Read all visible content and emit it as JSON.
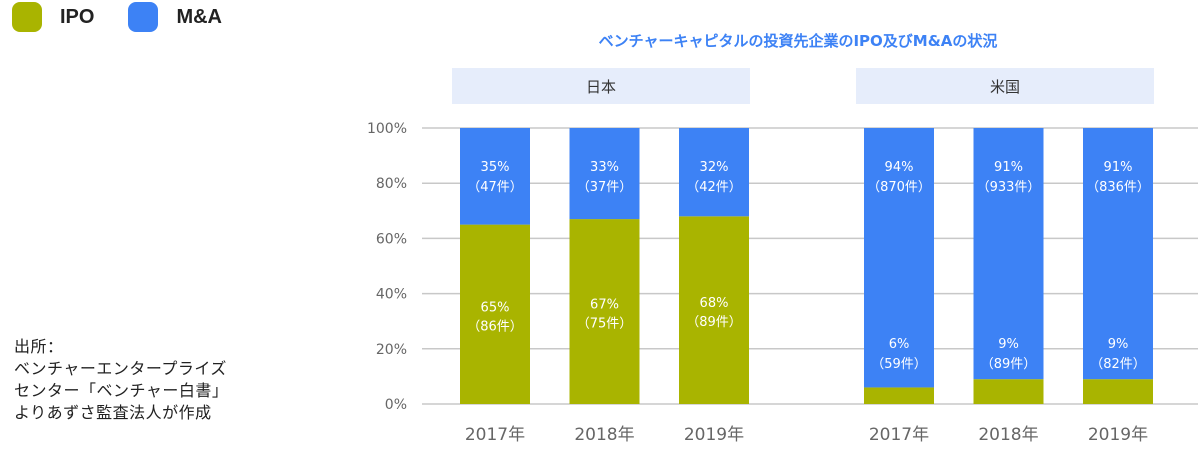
{
  "legend": {
    "items": [
      {
        "label": "IPO",
        "color": "#a9b400"
      },
      {
        "label": "M&A",
        "color": "#3d82f5"
      }
    ]
  },
  "source": {
    "lines": [
      "出所：",
      "ベンチャーエンタープライズ",
      "センター「ベンチャー白書」",
      "よりあずさ監査法人が作成"
    ]
  },
  "chart_data": {
    "type": "bar",
    "stacked": true,
    "title": "ベンチャーキャピタルの投資先企業のIPO及びM&Aの状況",
    "yticks": [
      "0%",
      "20%",
      "40%",
      "60%",
      "80%",
      "100%"
    ],
    "ylim": [
      0,
      100
    ],
    "grid": true,
    "legend_position": "top-left",
    "groups": [
      {
        "label": "日本",
        "categories": [
          "2017年",
          "2018年",
          "2019年"
        ],
        "series": [
          {
            "name": "IPO",
            "values": [
              65,
              67,
              68
            ],
            "labels": [
              "65%",
              "67%",
              "68%"
            ],
            "counts": [
              "（86件）",
              "（75件）",
              "（89件）"
            ]
          },
          {
            "name": "M&A",
            "values": [
              35,
              33,
              32
            ],
            "labels": [
              "35%",
              "33%",
              "32%"
            ],
            "counts": [
              "（47件）",
              "（37件）",
              "（42件）"
            ]
          }
        ]
      },
      {
        "label": "米国",
        "categories": [
          "2017年",
          "2018年",
          "2019年"
        ],
        "series": [
          {
            "name": "IPO",
            "values": [
              6,
              9,
              9
            ],
            "labels": [
              "6%",
              "9%",
              "9%"
            ],
            "counts": [
              "（59件）",
              "（89件）",
              "（82件）"
            ]
          },
          {
            "name": "M&A",
            "values": [
              94,
              91,
              91
            ],
            "labels": [
              "94%",
              "91%",
              "91%"
            ],
            "counts": [
              "（870件）",
              "（933件）",
              "（836件）"
            ]
          }
        ]
      }
    ]
  }
}
